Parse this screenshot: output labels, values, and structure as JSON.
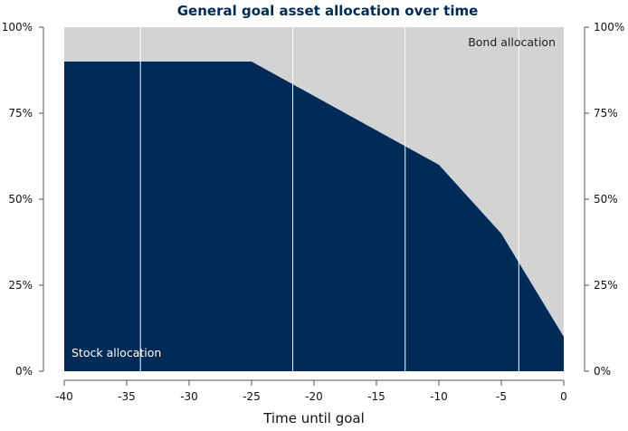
{
  "chart_data": {
    "type": "area",
    "title": "General goal asset allocation over time",
    "xlabel": "Time until goal",
    "ylabel": "",
    "xlim": [
      -40,
      0
    ],
    "ylim": [
      0,
      100
    ],
    "x_ticks": [
      -40,
      -35,
      -30,
      -25,
      -20,
      -15,
      -10,
      -5,
      0
    ],
    "x_tick_labels": [
      "-40",
      "-35",
      "-30",
      "-25",
      "-20",
      "-15",
      "-10",
      "-5",
      "0"
    ],
    "y_ticks": [
      0,
      25,
      50,
      75,
      100
    ],
    "y_tick_labels": [
      "0%",
      "25%",
      "50%",
      "75%",
      "100%"
    ],
    "vertical_gridlines_x": [
      -33.9,
      -21.7,
      -12.7,
      -3.6
    ],
    "series": [
      {
        "name": "Stock allocation",
        "color": "#002b57",
        "points": [
          [
            -40,
            90
          ],
          [
            -25,
            90
          ],
          [
            -10,
            60
          ],
          [
            -5,
            40
          ],
          [
            -3.5,
            31
          ],
          [
            0,
            10
          ]
        ]
      },
      {
        "name": "Bond allocation",
        "color": "#d3d3d3",
        "fills_to": 100
      }
    ],
    "title_color": "#002b57"
  }
}
